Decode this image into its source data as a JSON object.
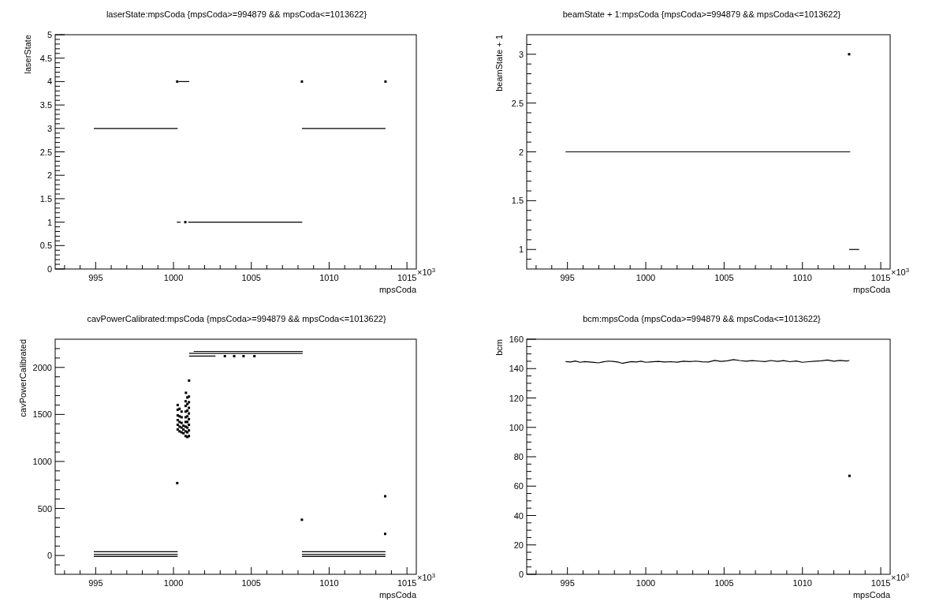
{
  "chart_data": [
    {
      "type": "scatter",
      "title": "laserState:mpsCoda {mpsCoda>=994879 && mpsCoda<=1013622}",
      "xlabel": "mpsCoda",
      "ylabel": "laserState",
      "annotations": [
        "×10$^{3}$"
      ],
      "xlim": [
        992.4,
        1015.6
      ],
      "xticks": [
        {
          "value": 993,
          "label": null
        },
        {
          "value": 994,
          "label": null
        },
        995,
        {
          "value": 996,
          "label": null
        },
        {
          "value": 997,
          "label": null
        },
        {
          "value": 998,
          "label": null
        },
        {
          "value": 999,
          "label": null
        },
        1000,
        {
          "value": 1001,
          "label": null
        },
        {
          "value": 1002,
          "label": null
        },
        {
          "value": 1003,
          "label": null
        },
        {
          "value": 1004,
          "label": null
        },
        1005,
        {
          "value": 1006,
          "label": null
        },
        {
          "value": 1007,
          "label": null
        },
        {
          "value": 1008,
          "label": null
        },
        {
          "value": 1009,
          "label": null
        },
        1010,
        {
          "value": 1011,
          "label": null
        },
        {
          "value": 1012,
          "label": null
        },
        {
          "value": 1013,
          "label": null
        },
        {
          "value": 1014,
          "label": null
        },
        1015
      ],
      "ylim": [
        0,
        5
      ],
      "yticks": [
        0,
        {
          "value": 0.1,
          "label": null
        },
        {
          "value": 0.2,
          "label": null
        },
        {
          "value": 0.3,
          "label": null
        },
        {
          "value": 0.4,
          "label": null
        },
        0.5,
        {
          "value": 0.6,
          "label": null
        },
        {
          "value": 0.7,
          "label": null
        },
        {
          "value": 0.8,
          "label": null
        },
        {
          "value": 0.9,
          "label": null
        },
        1,
        {
          "value": 1.1,
          "label": null
        },
        {
          "value": 1.2,
          "label": null
        },
        {
          "value": 1.3,
          "label": null
        },
        {
          "value": 1.4,
          "label": null
        },
        1.5,
        {
          "value": 1.6,
          "label": null
        },
        {
          "value": 1.7,
          "label": null
        },
        {
          "value": 1.8,
          "label": null
        },
        {
          "value": 1.9,
          "label": null
        },
        2,
        {
          "value": 2.1,
          "label": null
        },
        {
          "value": 2.2,
          "label": null
        },
        {
          "value": 2.3,
          "label": null
        },
        {
          "value": 2.4,
          "label": null
        },
        2.5,
        {
          "value": 2.6,
          "label": null
        },
        {
          "value": 2.7,
          "label": null
        },
        {
          "value": 2.8,
          "label": null
        },
        {
          "value": 2.9,
          "label": null
        },
        3,
        {
          "value": 3.1,
          "label": null
        },
        {
          "value": 3.2,
          "label": null
        },
        {
          "value": 3.3,
          "label": null
        },
        {
          "value": 3.4,
          "label": null
        },
        3.5,
        {
          "value": 3.6,
          "label": null
        },
        {
          "value": 3.7,
          "label": null
        },
        {
          "value": 3.8,
          "label": null
        },
        {
          "value": 3.9,
          "label": null
        },
        4,
        {
          "value": 4.1,
          "label": null
        },
        {
          "value": 4.2,
          "label": null
        },
        {
          "value": 4.3,
          "label": null
        },
        {
          "value": 4.4,
          "label": null
        },
        4.5,
        {
          "value": 4.6,
          "label": null
        },
        {
          "value": 4.7,
          "label": null
        },
        {
          "value": 4.8,
          "label": null
        },
        {
          "value": 4.9,
          "label": null
        },
        5
      ],
      "series": [
        {
          "type": "line",
          "color": "#000000",
          "x": [
            994.88,
            1000.27,
            1000.28,
            1008.25,
            1013.62
          ],
          "values": [
            3,
            3,
            null,
            3,
            3
          ]
        },
        {
          "type": "line",
          "color": "#000000",
          "x": [
            1000.22,
            1000.45,
            1000.46,
            1000.94,
            1008.27
          ],
          "values": [
            1,
            1,
            null,
            1,
            1
          ]
        },
        {
          "type": "line",
          "color": "#000000",
          "x": [
            1000.33,
            1001.01
          ],
          "values": [
            4,
            4
          ]
        },
        {
          "color": "#000000",
          "x": [
            1000.24,
            1000.76,
            1008.25,
            1013.62
          ],
          "values": [
            4,
            1,
            4,
            4
          ]
        }
      ]
    },
    {
      "type": "scatter",
      "title": "beamState + 1:mpsCoda {mpsCoda>=994879 && mpsCoda<=1013622}",
      "xlabel": "mpsCoda",
      "ylabel": "beamState + 1",
      "annotations": [
        "×10$^{3}$"
      ],
      "xlim": [
        992.4,
        1015.6
      ],
      "xticks": [
        {
          "value": 993,
          "label": null
        },
        {
          "value": 994,
          "label": null
        },
        995,
        {
          "value": 996,
          "label": null
        },
        {
          "value": 997,
          "label": null
        },
        {
          "value": 998,
          "label": null
        },
        {
          "value": 999,
          "label": null
        },
        1000,
        {
          "value": 1001,
          "label": null
        },
        {
          "value": 1002,
          "label": null
        },
        {
          "value": 1003,
          "label": null
        },
        {
          "value": 1004,
          "label": null
        },
        1005,
        {
          "value": 1006,
          "label": null
        },
        {
          "value": 1007,
          "label": null
        },
        {
          "value": 1008,
          "label": null
        },
        {
          "value": 1009,
          "label": null
        },
        1010,
        {
          "value": 1011,
          "label": null
        },
        {
          "value": 1012,
          "label": null
        },
        {
          "value": 1013,
          "label": null
        },
        {
          "value": 1014,
          "label": null
        },
        1015
      ],
      "ylim": [
        0.8,
        3.2
      ],
      "yticks": [
        {
          "value": 0.9,
          "label": null
        },
        1,
        {
          "value": 1.1,
          "label": null
        },
        {
          "value": 1.2,
          "label": null
        },
        {
          "value": 1.3,
          "label": null
        },
        {
          "value": 1.4,
          "label": null
        },
        1.5,
        {
          "value": 1.6,
          "label": null
        },
        {
          "value": 1.7,
          "label": null
        },
        {
          "value": 1.8,
          "label": null
        },
        {
          "value": 1.9,
          "label": null
        },
        2,
        {
          "value": 2.1,
          "label": null
        },
        {
          "value": 2.2,
          "label": null
        },
        {
          "value": 2.3,
          "label": null
        },
        {
          "value": 2.4,
          "label": null
        },
        2.5,
        {
          "value": 2.6,
          "label": null
        },
        {
          "value": 2.7,
          "label": null
        },
        {
          "value": 2.8,
          "label": null
        },
        {
          "value": 2.9,
          "label": null
        },
        3,
        {
          "value": 3.1,
          "label": null
        }
      ],
      "series": [
        {
          "type": "line",
          "color": "#000000",
          "x": [
            994.88,
            1013.05
          ],
          "values": [
            2,
            2
          ]
        },
        {
          "type": "line",
          "color": "#000000",
          "x": [
            1012.98,
            1013.62
          ],
          "values": [
            1,
            1
          ]
        },
        {
          "color": "#000000",
          "x": [
            1012.98
          ],
          "values": [
            3
          ]
        }
      ]
    },
    {
      "type": "scatter",
      "title": "cavPowerCalibrated:mpsCoda {mpsCoda>=994879 && mpsCoda<=1013622}",
      "xlabel": "mpsCoda",
      "ylabel": "cavPowerCalibrated",
      "annotations": [
        "×10$^{3}$"
      ],
      "xlim": [
        992.4,
        1015.6
      ],
      "xticks": [
        {
          "value": 993,
          "label": null
        },
        {
          "value": 994,
          "label": null
        },
        995,
        {
          "value": 996,
          "label": null
        },
        {
          "value": 997,
          "label": null
        },
        {
          "value": 998,
          "label": null
        },
        {
          "value": 999,
          "label": null
        },
        1000,
        {
          "value": 1001,
          "label": null
        },
        {
          "value": 1002,
          "label": null
        },
        {
          "value": 1003,
          "label": null
        },
        {
          "value": 1004,
          "label": null
        },
        1005,
        {
          "value": 1006,
          "label": null
        },
        {
          "value": 1007,
          "label": null
        },
        {
          "value": 1008,
          "label": null
        },
        {
          "value": 1009,
          "label": null
        },
        1010,
        {
          "value": 1011,
          "label": null
        },
        {
          "value": 1012,
          "label": null
        },
        {
          "value": 1013,
          "label": null
        },
        {
          "value": 1014,
          "label": null
        },
        1015
      ],
      "ylim": [
        -200,
        2300
      ],
      "yticks": [
        {
          "value": -100,
          "label": null
        },
        0,
        {
          "value": 100,
          "label": null
        },
        {
          "value": 200,
          "label": null
        },
        {
          "value": 300,
          "label": null
        },
        {
          "value": 400,
          "label": null
        },
        500,
        {
          "value": 600,
          "label": null
        },
        {
          "value": 700,
          "label": null
        },
        {
          "value": 800,
          "label": null
        },
        {
          "value": 900,
          "label": null
        },
        1000,
        {
          "value": 1100,
          "label": null
        },
        {
          "value": 1200,
          "label": null
        },
        {
          "value": 1300,
          "label": null
        },
        {
          "value": 1400,
          "label": null
        },
        1500,
        {
          "value": 1600,
          "label": null
        },
        {
          "value": 1700,
          "label": null
        },
        {
          "value": 1800,
          "label": null
        },
        {
          "value": 1900,
          "label": null
        },
        2000,
        {
          "value": 2100,
          "label": null
        },
        {
          "value": 2200,
          "label": null
        }
      ],
      "series": [
        {
          "type": "line",
          "color": "#000000",
          "x": [
            994.88,
            1000.27,
            1000.28,
            1008.25,
            1013.62
          ],
          "values": [
            40,
            40,
            null,
            40,
            40
          ]
        },
        {
          "type": "line",
          "color": "#000000",
          "x": [
            994.88,
            1000.27,
            1000.28,
            1008.25,
            1013.62
          ],
          "values": [
            10,
            10,
            null,
            10,
            10
          ]
        },
        {
          "type": "line",
          "color": "#000000",
          "x": [
            994.88,
            1000.27,
            1000.28,
            1008.25,
            1013.62
          ],
          "values": [
            -10,
            -10,
            null,
            -10,
            -10
          ]
        },
        {
          "type": "line",
          "color": "#000000",
          "x": [
            1001.3,
            1008.3
          ],
          "values": [
            2170,
            2170
          ]
        },
        {
          "type": "line",
          "color": "#000000",
          "x": [
            1001.0,
            1008.3
          ],
          "values": [
            2150,
            2150
          ]
        },
        {
          "type": "line",
          "color": "#000000",
          "x": [
            1001.0,
            1002.7
          ],
          "values": [
            2120,
            2120
          ]
        },
        {
          "color": "#000000",
          "x": [
            1000.24,
            1001.0,
            1000.8,
            1008.25,
            1013.6,
            1013.6,
            1003.3,
            1003.9,
            1004.5,
            1005.2,
            1000.27,
            1000.27,
            1000.27,
            1000.27,
            1000.27,
            1000.27,
            1000.39,
            1000.39,
            1000.39,
            1000.39,
            1000.39,
            1000.52,
            1000.52,
            1000.52,
            1000.52,
            1000.52,
            1000.64,
            1000.64,
            1000.64,
            1000.78,
            1000.78,
            1000.78,
            1000.78,
            1000.78,
            1000.78,
            1000.78,
            1000.78,
            1000.89,
            1000.89,
            1000.89,
            1000.89,
            1000.89,
            1000.89,
            1000.89,
            1000.89,
            1000.99,
            1000.99,
            1000.99,
            1000.99,
            1000.99,
            1000.99,
            1000.99,
            1000.99
          ],
          "values": [
            770,
            1860,
            1730,
            380,
            630,
            230,
            2120,
            2120,
            2120,
            2120,
            1340,
            1390,
            1440,
            1490,
            1550,
            1600,
            1320,
            1370,
            1420,
            1480,
            1560,
            1310,
            1360,
            1410,
            1470,
            1530,
            1300,
            1340,
            1380,
            1270,
            1320,
            1370,
            1420,
            1470,
            1530,
            1590,
            1640,
            1260,
            1310,
            1360,
            1420,
            1480,
            1540,
            1610,
            1680,
            1270,
            1330,
            1390,
            1450,
            1510,
            1570,
            1630,
            1690
          ]
        }
      ]
    },
    {
      "type": "scatter",
      "title": "bcm:mpsCoda {mpsCoda>=994879 && mpsCoda<=1013622}",
      "xlabel": "mpsCoda",
      "ylabel": "bcm",
      "annotations": [
        "×10$^{3}$"
      ],
      "xlim": [
        992.4,
        1015.6
      ],
      "xticks": [
        {
          "value": 993,
          "label": null
        },
        {
          "value": 994,
          "label": null
        },
        995,
        {
          "value": 996,
          "label": null
        },
        {
          "value": 997,
          "label": null
        },
        {
          "value": 998,
          "label": null
        },
        {
          "value": 999,
          "label": null
        },
        1000,
        {
          "value": 1001,
          "label": null
        },
        {
          "value": 1002,
          "label": null
        },
        {
          "value": 1003,
          "label": null
        },
        {
          "value": 1004,
          "label": null
        },
        1005,
        {
          "value": 1006,
          "label": null
        },
        {
          "value": 1007,
          "label": null
        },
        {
          "value": 1008,
          "label": null
        },
        {
          "value": 1009,
          "label": null
        },
        1010,
        {
          "value": 1011,
          "label": null
        },
        {
          "value": 1012,
          "label": null
        },
        {
          "value": 1013,
          "label": null
        },
        {
          "value": 1014,
          "label": null
        },
        1015
      ],
      "ylim": [
        0,
        160
      ],
      "yticks": [
        0,
        {
          "value": 5,
          "label": null
        },
        {
          "value": 10,
          "label": null
        },
        {
          "value": 15,
          "label": null
        },
        20,
        {
          "value": 25,
          "label": null
        },
        {
          "value": 30,
          "label": null
        },
        {
          "value": 35,
          "label": null
        },
        40,
        {
          "value": 45,
          "label": null
        },
        {
          "value": 50,
          "label": null
        },
        {
          "value": 55,
          "label": null
        },
        60,
        {
          "value": 65,
          "label": null
        },
        {
          "value": 70,
          "label": null
        },
        {
          "value": 75,
          "label": null
        },
        80,
        {
          "value": 85,
          "label": null
        },
        {
          "value": 90,
          "label": null
        },
        {
          "value": 95,
          "label": null
        },
        100,
        {
          "value": 105,
          "label": null
        },
        {
          "value": 110,
          "label": null
        },
        {
          "value": 115,
          "label": null
        },
        120,
        {
          "value": 125,
          "label": null
        },
        {
          "value": 130,
          "label": null
        },
        {
          "value": 135,
          "label": null
        },
        140,
        {
          "value": 145,
          "label": null
        },
        {
          "value": 150,
          "label": null
        },
        {
          "value": 155,
          "label": null
        },
        160
      ],
      "series": [
        {
          "type": "line",
          "color": "#000000",
          "x": [
            994.88,
            995.2,
            995.5,
            995.8,
            996.1,
            996.4,
            996.7,
            997.0,
            997.3,
            997.6,
            997.9,
            998.2,
            998.5,
            998.8,
            999.1,
            999.4,
            999.7,
            1000.0,
            1000.4,
            1000.8,
            1001.2,
            1001.6,
            1002.0,
            1002.4,
            1002.8,
            1003.2,
            1003.6,
            1004.0,
            1004.4,
            1004.8,
            1005.2,
            1005.6,
            1006.0,
            1006.4,
            1006.8,
            1007.2,
            1007.6,
            1008.0,
            1008.4,
            1008.8,
            1009.2,
            1009.6,
            1010.0,
            1010.4,
            1010.8,
            1011.2,
            1011.6,
            1012.0,
            1012.4,
            1012.8,
            1013.0
          ],
          "values": [
            144.8,
            144.5,
            145.2,
            144.3,
            144.8,
            144.5,
            144.2,
            143.9,
            144.6,
            145.1,
            144.9,
            144.5,
            143.6,
            144.2,
            144.8,
            144.5,
            145.0,
            144.3,
            144.6,
            144.9,
            144.5,
            144.7,
            144.4,
            145.0,
            144.8,
            145.1,
            144.6,
            144.5,
            145.6,
            144.9,
            145.3,
            146.1,
            145.5,
            145.0,
            145.4,
            145.1,
            144.8,
            145.5,
            144.9,
            145.4,
            144.7,
            145.2,
            144.3,
            144.7,
            145.0,
            145.3,
            145.8,
            145.0,
            145.6,
            145.2,
            145.5
          ]
        },
        {
          "color": "#000000",
          "x": [
            1013.0
          ],
          "values": [
            67
          ]
        }
      ]
    }
  ]
}
